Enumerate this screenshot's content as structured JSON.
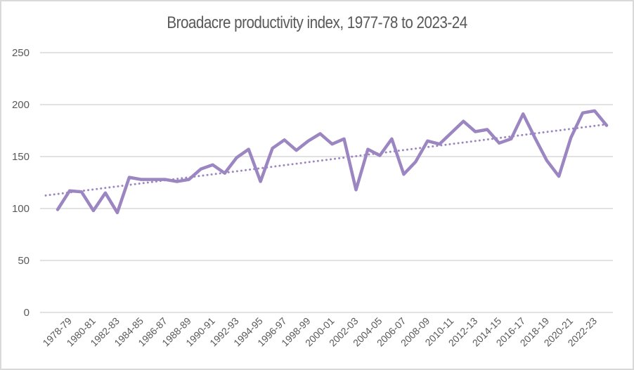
{
  "chart_data": {
    "type": "line",
    "title": "Broadacre productivity index, 1977-78 to 2023-24",
    "xlabel": "",
    "ylabel": "",
    "ylim": [
      0,
      250
    ],
    "yticks": [
      0,
      50,
      100,
      150,
      200,
      250
    ],
    "grid": true,
    "legend": "none",
    "categories": [
      "1977-78",
      "1978-79",
      "1979-80",
      "1980-81",
      "1981-82",
      "1982-83",
      "1983-84",
      "1984-85",
      "1985-86",
      "1986-87",
      "1987-88",
      "1988-89",
      "1989-90",
      "1990-91",
      "1991-92",
      "1992-93",
      "1993-94",
      "1994-95",
      "1995-96",
      "1996-97",
      "1997-98",
      "1998-99",
      "1999-00",
      "2000-01",
      "2001-02",
      "2002-03",
      "2003-04",
      "2004-05",
      "2005-06",
      "2006-07",
      "2007-08",
      "2008-09",
      "2009-10",
      "2010-11",
      "2011-12",
      "2012-13",
      "2013-14",
      "2014-15",
      "2015-16",
      "2016-17",
      "2017-18",
      "2018-19",
      "2019-20",
      "2020-21",
      "2021-22",
      "2022-23",
      "2023-24"
    ],
    "xtick_labels_shown": [
      "1978-79",
      "1980-81",
      "1982-83",
      "1984-85",
      "1986-87",
      "1988-89",
      "1990-91",
      "1992-93",
      "1994-95",
      "1996-97",
      "1998-99",
      "2000-01",
      "2002-03",
      "2004-05",
      "2006-07",
      "2008-09",
      "2010-11",
      "2012-13",
      "2014-15",
      "2016-17",
      "2018-19",
      "2020-21",
      "2022-23"
    ],
    "series": [
      {
        "name": "Broadacre productivity index",
        "color": "#9c86c2",
        "style": "solid",
        "values": [
          99,
          117,
          116,
          98,
          115,
          96,
          130,
          128,
          128,
          128,
          126,
          128,
          138,
          142,
          134,
          149,
          157,
          126,
          158,
          166,
          156,
          165,
          172,
          162,
          167,
          118,
          157,
          151,
          167,
          133,
          145,
          165,
          162,
          173,
          184,
          174,
          176,
          163,
          167,
          191,
          168,
          146,
          131,
          168,
          192,
          194,
          180
        ]
      }
    ],
    "trendline": {
      "name": "Linear trend",
      "type": "linear",
      "color": "#9c86c2",
      "style": "dotted",
      "start_value": 114,
      "end_value": 181,
      "backward_periods": 1
    }
  }
}
